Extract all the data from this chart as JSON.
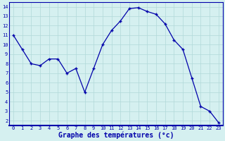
{
  "x": [
    0,
    1,
    2,
    3,
    4,
    5,
    6,
    7,
    8,
    9,
    10,
    11,
    12,
    13,
    14,
    15,
    16,
    17,
    18,
    19,
    20,
    21,
    22,
    23
  ],
  "y": [
    11,
    9.5,
    8.0,
    7.8,
    8.5,
    8.5,
    7.0,
    7.5,
    5.0,
    7.5,
    10.0,
    11.5,
    12.5,
    13.8,
    13.9,
    13.5,
    13.2,
    12.2,
    10.5,
    9.5,
    6.5,
    3.5,
    3.0,
    1.8
  ],
  "xlabel": "Graphe des températures (°c)",
  "xlim": [
    -0.5,
    23.5
  ],
  "ylim": [
    1.5,
    14.5
  ],
  "yticks": [
    2,
    3,
    4,
    5,
    6,
    7,
    8,
    9,
    10,
    11,
    12,
    13,
    14
  ],
  "xticks": [
    0,
    1,
    2,
    3,
    4,
    5,
    6,
    7,
    8,
    9,
    10,
    11,
    12,
    13,
    14,
    15,
    16,
    17,
    18,
    19,
    20,
    21,
    22,
    23
  ],
  "line_color": "#0000aa",
  "marker_color": "#0000aa",
  "bg_color": "#d5f0f0",
  "grid_color": "#b0d8d8",
  "tick_color": "#0000aa",
  "xlabel_color": "#0000aa",
  "spine_color": "#0000aa",
  "tick_fontsize": 5.0,
  "xlabel_fontsize": 7.0
}
